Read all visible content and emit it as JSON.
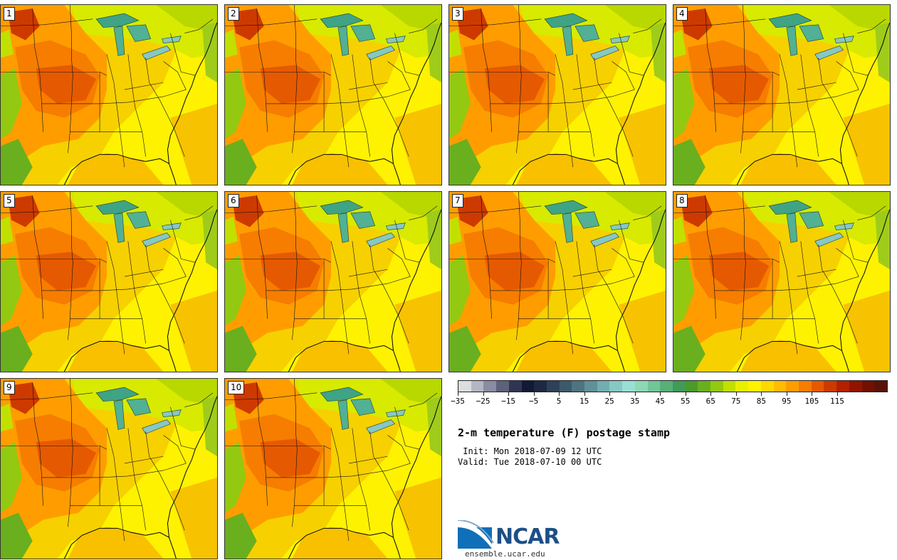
{
  "panels": [
    {
      "label": "1"
    },
    {
      "label": "2"
    },
    {
      "label": "3"
    },
    {
      "label": "4"
    },
    {
      "label": "5"
    },
    {
      "label": "6"
    },
    {
      "label": "7"
    },
    {
      "label": "8"
    },
    {
      "label": "9"
    },
    {
      "label": "10"
    }
  ],
  "colorbar": {
    "colors": [
      "#dcdde0",
      "#b5b6c3",
      "#8a8ca2",
      "#5d6179",
      "#2f3552",
      "#121a33",
      "#1d2942",
      "#2d4258",
      "#3d5a6c",
      "#4e7481",
      "#609099",
      "#72aeb0",
      "#86c8c4",
      "#98e0d4",
      "#8ed8b4",
      "#72c596",
      "#57b078",
      "#419a58",
      "#4a9a2c",
      "#6aaf1e",
      "#93c910",
      "#c2e000",
      "#e8f000",
      "#fff300",
      "#ffd800",
      "#ffbc00",
      "#ff9d00",
      "#f67d00",
      "#e55a00",
      "#cd3a00",
      "#b32000",
      "#941300",
      "#731000",
      "#5a1208"
    ],
    "tick_labels": [
      "−35",
      "−25",
      "−15",
      "−5",
      "5",
      "15",
      "25",
      "35",
      "45",
      "55",
      "65",
      "75",
      "85",
      "95",
      "105",
      "115"
    ]
  },
  "title": "2-m temperature (F) postage stamp",
  "init_line": " Init: Mon 2018-07-09 12 UTC",
  "valid_line": "Valid: Tue 2018-07-10 00 UTC",
  "logo": {
    "text": "NCAR",
    "url": "ensemble.ucar.edu"
  }
}
